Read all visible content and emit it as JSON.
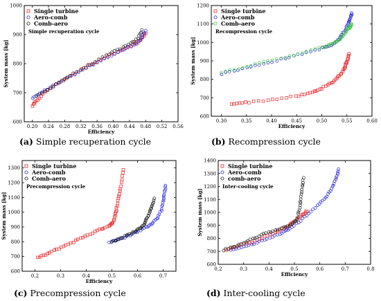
{
  "chart_data": [
    {
      "type": "scatter",
      "caption_letter": "(a)",
      "caption_text": "Simple recuperation cycle",
      "inner_label": "Simple recuperation cycle",
      "xlabel": "Efficiency",
      "ylabel": "System mass [kg]",
      "xlim": [
        0.18,
        0.56
      ],
      "ylim": [
        600,
        1000
      ],
      "xticks": [
        "0.20",
        "0.24",
        "0.28",
        "0.32",
        "0.36",
        "0.40",
        "0.44",
        "0.48",
        "0.52",
        "0.56"
      ],
      "yticks": [
        "600",
        "700",
        "800",
        "900",
        "1000"
      ],
      "legend_position": "top-left",
      "series": [
        {
          "name": "Single turbine",
          "color": "#e8262a",
          "marker": "square",
          "n": 45,
          "pts": [
            [
              0.2,
              655
            ],
            [
              0.21,
              672
            ],
            [
              0.23,
              700
            ],
            [
              0.26,
              730
            ],
            [
              0.3,
              762
            ],
            [
              0.34,
              795
            ],
            [
              0.38,
              822
            ],
            [
              0.42,
              848
            ],
            [
              0.45,
              865
            ],
            [
              0.47,
              885
            ],
            [
              0.48,
              905
            ]
          ]
        },
        {
          "name": "Aero-comb",
          "color": "#2b2bd9",
          "marker": "circle",
          "n": 45,
          "pts": [
            [
              0.2,
              680
            ],
            [
              0.22,
              698
            ],
            [
              0.25,
              722
            ],
            [
              0.28,
              745
            ],
            [
              0.32,
              775
            ],
            [
              0.36,
              805
            ],
            [
              0.4,
              830
            ],
            [
              0.43,
              852
            ],
            [
              0.46,
              870
            ],
            [
              0.47,
              890
            ],
            [
              0.48,
              912
            ]
          ]
        },
        {
          "name": "Comb-aero",
          "color": "#1a1a1a",
          "marker": "circle",
          "n": 40,
          "pts": [
            [
              0.21,
              688
            ],
            [
              0.24,
              712
            ],
            [
              0.27,
              740
            ],
            [
              0.3,
              765
            ],
            [
              0.34,
              795
            ],
            [
              0.38,
              825
            ],
            [
              0.41,
              848
            ],
            [
              0.44,
              866
            ],
            [
              0.46,
              885
            ],
            [
              0.47,
              915
            ]
          ]
        }
      ]
    },
    {
      "type": "scatter",
      "caption_letter": "(b)",
      "caption_text": "Recompression cycle",
      "inner_label": "Recompression cycle",
      "xlabel": "Efficiency",
      "ylabel": "System mass [kg]",
      "xlim": [
        0.28,
        0.6
      ],
      "ylim": [
        600,
        1200
      ],
      "xticks": [
        "0.30",
        "0.35",
        "0.40",
        "0.45",
        "0.50",
        "0.55",
        "0.60"
      ],
      "yticks": [
        "600",
        "700",
        "800",
        "900",
        "1000",
        "1100",
        "1200"
      ],
      "legend_position": "top-left",
      "series": [
        {
          "name": "Single turbine",
          "color": "#e8262a",
          "marker": "square",
          "n": 55,
          "pts": [
            [
              0.32,
              668
            ],
            [
              0.35,
              675
            ],
            [
              0.4,
              690
            ],
            [
              0.45,
              708
            ],
            [
              0.48,
              728
            ],
            [
              0.5,
              752
            ],
            [
              0.52,
              782
            ],
            [
              0.535,
              820
            ],
            [
              0.545,
              858
            ],
            [
              0.55,
              895
            ],
            [
              0.555,
              940
            ]
          ]
        },
        {
          "name": "Aero-comb",
          "color": "#2b2bd9",
          "marker": "circle",
          "n": 60,
          "pts": [
            [
              0.3,
              830
            ],
            [
              0.35,
              862
            ],
            [
              0.4,
              895
            ],
            [
              0.45,
              930
            ],
            [
              0.5,
              968
            ],
            [
              0.52,
              985
            ],
            [
              0.535,
              1020
            ],
            [
              0.545,
              1060
            ],
            [
              0.552,
              1100
            ],
            [
              0.556,
              1130
            ],
            [
              0.56,
              1160
            ]
          ]
        },
        {
          "name": "Comb-aero",
          "color": "#3fc83f",
          "marker": "circle",
          "n": 60,
          "pts": [
            [
              0.3,
              838
            ],
            [
              0.35,
              870
            ],
            [
              0.4,
              902
            ],
            [
              0.45,
              936
            ],
            [
              0.5,
              972
            ],
            [
              0.52,
              990
            ],
            [
              0.535,
              1015
            ],
            [
              0.545,
              1045
            ],
            [
              0.552,
              1070
            ],
            [
              0.556,
              1085
            ],
            [
              0.56,
              1100
            ]
          ]
        }
      ]
    },
    {
      "type": "scatter",
      "caption_letter": "(c)",
      "caption_text": "Precompression cycle",
      "inner_label": "Precompression cycle",
      "xlabel": "Efficiency",
      "ylabel": "System mass [kg]",
      "xlim": [
        0.15,
        0.75
      ],
      "ylim": [
        600,
        1350
      ],
      "xticks": [
        "0.2",
        "0.3",
        "0.4",
        "0.5",
        "0.6",
        "0.7"
      ],
      "yticks": [
        "600",
        "700",
        "800",
        "900",
        "1000",
        "1100",
        "1200",
        "1300"
      ],
      "legend_position": "top-left",
      "series": [
        {
          "name": "Single turbine",
          "color": "#e8262a",
          "marker": "square",
          "n": 60,
          "pts": [
            [
              0.21,
              690
            ],
            [
              0.25,
              720
            ],
            [
              0.3,
              760
            ],
            [
              0.35,
              800
            ],
            [
              0.4,
              842
            ],
            [
              0.45,
              880
            ],
            [
              0.49,
              910
            ],
            [
              0.505,
              935
            ],
            [
              0.515,
              1000
            ],
            [
              0.525,
              1080
            ],
            [
              0.535,
              1170
            ],
            [
              0.545,
              1290
            ]
          ]
        },
        {
          "name": "Aero-comb",
          "color": "#2b2bd9",
          "marker": "circle",
          "n": 50,
          "pts": [
            [
              0.49,
              795
            ],
            [
              0.52,
              812
            ],
            [
              0.55,
              830
            ],
            [
              0.58,
              852
            ],
            [
              0.61,
              878
            ],
            [
              0.64,
              905
            ],
            [
              0.66,
              930
            ],
            [
              0.68,
              965
            ],
            [
              0.695,
              1020
            ],
            [
              0.7,
              1080
            ],
            [
              0.705,
              1130
            ],
            [
              0.71,
              1180
            ]
          ]
        },
        {
          "name": "Comb-aero",
          "color": "#1a1a1a",
          "marker": "circle",
          "n": 45,
          "pts": [
            [
              0.5,
              800
            ],
            [
              0.53,
              820
            ],
            [
              0.56,
              845
            ],
            [
              0.59,
              870
            ],
            [
              0.61,
              890
            ],
            [
              0.625,
              915
            ],
            [
              0.635,
              950
            ],
            [
              0.645,
              990
            ],
            [
              0.655,
              1040
            ],
            [
              0.665,
              1090
            ]
          ]
        }
      ]
    },
    {
      "type": "scatter",
      "caption_letter": "(d)",
      "caption_text": "Inter-cooling cycle",
      "inner_label": "Inter-cooling cycle",
      "xlabel": "Efficiency",
      "ylabel": "System mass [kg]",
      "xlim": [
        0.2,
        0.8
      ],
      "ylim": [
        600,
        1400
      ],
      "xticks": [
        "0.2",
        "0.3",
        "0.4",
        "0.5",
        "0.6",
        "0.7",
        "0.8"
      ],
      "yticks": [
        "600",
        "700",
        "800",
        "900",
        "1000",
        "1100",
        "1200",
        "1300",
        "1400"
      ],
      "legend_position": "top-left",
      "series": [
        {
          "name": "Single turbine",
          "color": "#e8262a",
          "marker": "square",
          "n": 40,
          "pts": [
            [
              0.23,
              712
            ],
            [
              0.28,
              740
            ],
            [
              0.33,
              770
            ],
            [
              0.38,
              810
            ],
            [
              0.43,
              850
            ],
            [
              0.47,
              890
            ],
            [
              0.5,
              930
            ],
            [
              0.53,
              980
            ],
            [
              0.55,
              1010
            ]
          ]
        },
        {
          "name": "Aero-comb",
          "color": "#2b2bd9",
          "marker": "circle",
          "n": 60,
          "pts": [
            [
              0.25,
              708
            ],
            [
              0.3,
              735
            ],
            [
              0.35,
              765
            ],
            [
              0.4,
              800
            ],
            [
              0.45,
              840
            ],
            [
              0.48,
              870
            ],
            [
              0.52,
              930
            ],
            [
              0.56,
              1000
            ],
            [
              0.6,
              1070
            ],
            [
              0.63,
              1130
            ],
            [
              0.65,
              1200
            ],
            [
              0.665,
              1270
            ],
            [
              0.675,
              1330
            ]
          ]
        },
        {
          "name": "comb-aero",
          "color": "#1a1a1a",
          "marker": "circle",
          "n": 55,
          "pts": [
            [
              0.22,
              710
            ],
            [
              0.26,
              735
            ],
            [
              0.3,
              765
            ],
            [
              0.34,
              800
            ],
            [
              0.38,
              835
            ],
            [
              0.42,
              860
            ],
            [
              0.46,
              885
            ],
            [
              0.49,
              905
            ],
            [
              0.51,
              950
            ],
            [
              0.52,
              1030
            ],
            [
              0.525,
              1100
            ],
            [
              0.53,
              1190
            ],
            [
              0.535,
              1265
            ]
          ]
        }
      ]
    }
  ]
}
